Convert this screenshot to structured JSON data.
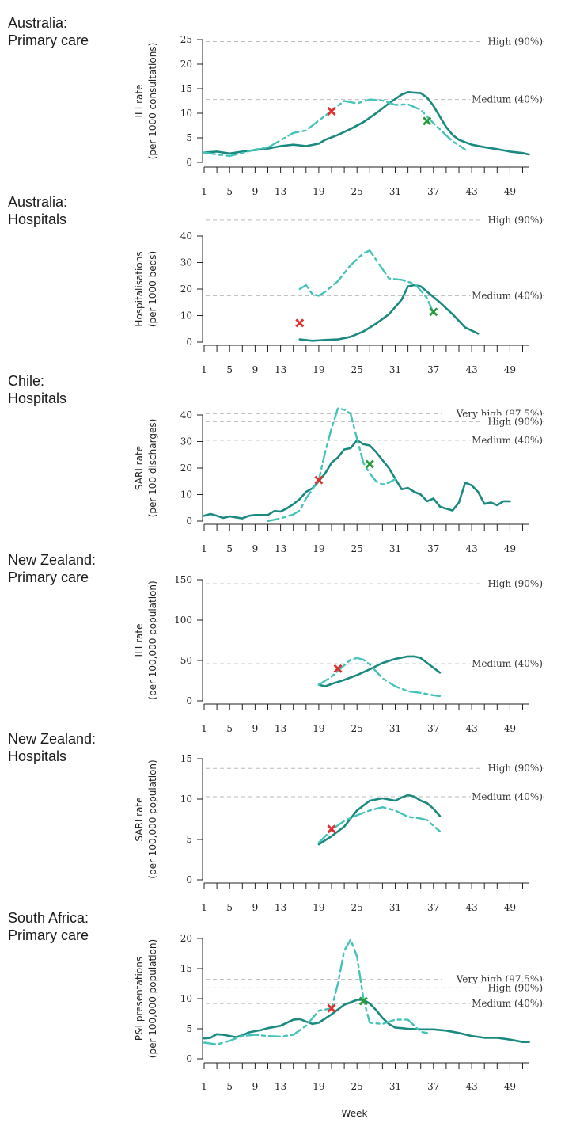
{
  "xlabel": "Week",
  "legend": {
    "current_style": "solid",
    "comparison_style": "dashed"
  },
  "colors": {
    "current": "#1a8a80",
    "comparison": "#44c3b9",
    "threshold": "#bbbbbb",
    "marker_red": "#e03030",
    "marker_green": "#2a9a3a"
  },
  "chart_data": [
    {
      "type": "line",
      "title_lines": [
        "Australia:",
        "Primary care"
      ],
      "ylabel": [
        "ILI rate",
        "(per 1000 consultations)"
      ],
      "ylim": [
        0,
        25
      ],
      "yticks": [
        0,
        5,
        10,
        15,
        20,
        25
      ],
      "xticks": [
        1,
        5,
        9,
        13,
        19,
        25,
        31,
        37,
        43,
        49
      ],
      "thresholds": [
        {
          "label": "High (90%)",
          "value": 24.6
        },
        {
          "label": "Medium (40%)",
          "value": 12.8
        }
      ],
      "series": [
        {
          "style": "solid",
          "x": [
            1,
            3,
            5,
            7,
            9,
            11,
            13,
            15,
            17,
            19,
            20,
            22,
            24,
            26,
            28,
            30,
            32,
            33,
            34,
            35,
            36,
            37,
            38,
            39,
            40,
            41,
            43,
            45,
            47,
            49,
            51,
            52
          ],
          "y": [
            2,
            2.2,
            1.8,
            2.2,
            2.5,
            2.8,
            3.3,
            3.6,
            3.3,
            3.8,
            4.6,
            5.6,
            6.8,
            8.2,
            10,
            12,
            13.8,
            14.3,
            14.2,
            14.1,
            13.2,
            11.5,
            9.3,
            7.2,
            5.6,
            4.6,
            3.6,
            3.1,
            2.7,
            2.2,
            1.9,
            1.6
          ]
        },
        {
          "style": "dashed",
          "x": [
            1,
            3,
            5,
            7,
            9,
            11,
            13,
            15,
            17,
            19,
            21,
            23,
            25,
            27,
            29,
            31,
            33,
            35,
            37,
            39,
            40,
            42
          ],
          "y": [
            2,
            1.6,
            1.3,
            1.9,
            2.6,
            3,
            4.5,
            6,
            6.5,
            8.5,
            10.5,
            12.5,
            12,
            12.8,
            12.6,
            11.7,
            11.8,
            10.7,
            8,
            5.5,
            4.3,
            2.6
          ]
        }
      ],
      "markers": [
        {
          "color": "red",
          "x": 21,
          "y": 10.4
        },
        {
          "color": "green",
          "x": 36,
          "y": 8.4
        }
      ]
    },
    {
      "type": "line",
      "title_lines": [
        "Australia:",
        "Hospitals"
      ],
      "ylabel": [
        "Hospitalisations",
        "(per 1000 beds)"
      ],
      "ylim": [
        0,
        40
      ],
      "yticks": [
        0,
        10,
        20,
        30,
        40
      ],
      "xticks": [
        1,
        5,
        9,
        13,
        19,
        25,
        31,
        37,
        43,
        49
      ],
      "thresholds": [
        {
          "label": "High (90%)",
          "value": 46
        },
        {
          "label": "Medium (40%)",
          "value": 17.5
        }
      ],
      "series": [
        {
          "style": "solid",
          "x": [
            16,
            18,
            20,
            22,
            24,
            26,
            28,
            30,
            32,
            33,
            34,
            35,
            36,
            38,
            40,
            42,
            44
          ],
          "y": [
            1,
            0.5,
            0.8,
            1,
            2,
            4,
            7,
            10.5,
            16,
            21,
            21.5,
            21,
            19,
            15,
            10.5,
            5.5,
            3.2
          ]
        },
        {
          "style": "dashed",
          "x": [
            16,
            17,
            18,
            19,
            20,
            22,
            24,
            26,
            27,
            28,
            30,
            32,
            34,
            35,
            36,
            37
          ],
          "y": [
            20,
            21.5,
            18,
            17.5,
            19,
            23,
            29,
            33.5,
            34.5,
            31,
            24,
            23.5,
            22,
            19.5,
            16.5,
            11
          ]
        }
      ],
      "markers": [
        {
          "color": "red",
          "x": 16,
          "y": 7.2
        },
        {
          "color": "green",
          "x": 37,
          "y": 11.4
        }
      ]
    },
    {
      "type": "line",
      "title_lines": [
        "Chile:",
        "Hospitals"
      ],
      "ylabel": [
        "SARI rate",
        "(per 100 discharges)"
      ],
      "ylim": [
        0,
        40
      ],
      "yticks": [
        0,
        10,
        20,
        30,
        40
      ],
      "xticks": [
        1,
        5,
        9,
        13,
        19,
        25,
        31,
        37,
        43,
        49
      ],
      "thresholds": [
        {
          "label": "Very high (97.5%)",
          "value": 40.5
        },
        {
          "label": "High (90%)",
          "value": 37.5
        },
        {
          "label": "Medium (40%)",
          "value": 30.5
        }
      ],
      "series": [
        {
          "style": "solid",
          "x": [
            1,
            2,
            3,
            4,
            5,
            6,
            7,
            8,
            9,
            10,
            11,
            12,
            13,
            14,
            15,
            16,
            17,
            18,
            19,
            20,
            21,
            22,
            23,
            24,
            25,
            26,
            27,
            28,
            29,
            30,
            31,
            32,
            33,
            34,
            35,
            36,
            37,
            38,
            39,
            40,
            41,
            42,
            43,
            44,
            45,
            46,
            47,
            48,
            49
          ],
          "y": [
            2,
            2.7,
            2,
            1.2,
            1.8,
            1.4,
            1,
            2,
            2.3,
            2.3,
            2.3,
            3.8,
            3.6,
            4.8,
            6.4,
            8.3,
            11,
            12.4,
            15,
            18,
            22,
            24,
            27,
            27.5,
            30.5,
            29,
            28.5,
            26,
            23,
            20,
            16,
            12,
            12.5,
            11,
            10,
            7.5,
            8.5,
            5.5,
            4.7,
            4,
            7,
            14.5,
            13.5,
            11,
            6.5,
            7,
            6,
            7.5,
            7.5
          ]
        },
        {
          "style": "dashed",
          "x": [
            11,
            13,
            15,
            16,
            17,
            18,
            19,
            20,
            21,
            22,
            23,
            24,
            25,
            26,
            27,
            28,
            29,
            30,
            31
          ],
          "y": [
            0,
            1,
            2.5,
            4,
            8.5,
            12,
            15.5,
            26,
            35,
            42.5,
            42,
            40.5,
            31,
            22,
            18,
            15,
            13.8,
            14.5,
            15.8
          ]
        }
      ],
      "markers": [
        {
          "color": "red",
          "x": 19,
          "y": 15.5
        },
        {
          "color": "green",
          "x": 27,
          "y": 21.5
        }
      ]
    },
    {
      "type": "line",
      "title_lines": [
        "New Zealand:",
        "Primary care"
      ],
      "ylabel": [
        "ILI rate",
        "(per 100,000 population)"
      ],
      "ylim": [
        0,
        150
      ],
      "yticks": [
        0,
        50,
        100,
        150
      ],
      "xticks": [
        1,
        5,
        9,
        13,
        19,
        25,
        31,
        37,
        43,
        49
      ],
      "thresholds": [
        {
          "label": "High (90%)",
          "value": 145
        },
        {
          "label": "Medium (40%)",
          "value": 46
        }
      ],
      "series": [
        {
          "style": "solid",
          "x": [
            19,
            20,
            21,
            23,
            25,
            27,
            29,
            31,
            33,
            34,
            35,
            36,
            37,
            38
          ],
          "y": [
            20,
            18,
            21,
            26,
            32,
            39,
            47,
            52,
            55,
            55,
            53,
            47,
            41,
            35
          ]
        },
        {
          "style": "dashed",
          "x": [
            19,
            21,
            23,
            24,
            25,
            26,
            27,
            29,
            31,
            33,
            35,
            37,
            38
          ],
          "y": [
            20,
            30,
            44,
            51,
            53,
            51,
            45,
            28,
            18,
            12,
            10,
            7,
            6
          ]
        }
      ],
      "markers": [
        {
          "color": "red",
          "x": 22,
          "y": 40
        }
      ]
    },
    {
      "type": "line",
      "title_lines": [
        "New Zealand:",
        "Hospitals"
      ],
      "ylabel": [
        "SARI rate",
        "(per 100,000 population)"
      ],
      "ylim": [
        0,
        15
      ],
      "yticks": [
        0,
        5,
        10,
        15
      ],
      "xticks": [
        1,
        5,
        9,
        13,
        19,
        25,
        31,
        37,
        43,
        49
      ],
      "thresholds": [
        {
          "label": "High (90%)",
          "value": 13.8
        },
        {
          "label": "Medium (40%)",
          "value": 10.3
        }
      ],
      "series": [
        {
          "style": "solid",
          "x": [
            19,
            21,
            23,
            25,
            27,
            29,
            31,
            32,
            33,
            34,
            35,
            36,
            37,
            38
          ],
          "y": [
            4.4,
            5.4,
            6.6,
            8.6,
            9.8,
            10.1,
            9.8,
            10.2,
            10.5,
            10.3,
            9.8,
            9.5,
            8.8,
            7.9
          ]
        },
        {
          "style": "dashed",
          "x": [
            19,
            21,
            23,
            25,
            27,
            29,
            31,
            33,
            35,
            36,
            38
          ],
          "y": [
            4.6,
            6.2,
            7.3,
            8,
            8.6,
            9,
            8.6,
            7.8,
            7.6,
            7.4,
            6
          ]
        }
      ],
      "markers": [
        {
          "color": "red",
          "x": 21,
          "y": 6.3
        }
      ]
    },
    {
      "type": "line",
      "title_lines": [
        "South Africa:",
        "Primary care"
      ],
      "ylabel": [
        "P&I presentations",
        "(per 100,000 population)"
      ],
      "ylim": [
        0,
        20
      ],
      "yticks": [
        0,
        5,
        10,
        15,
        20
      ],
      "xticks": [
        1,
        5,
        9,
        13,
        19,
        25,
        31,
        37,
        43,
        49
      ],
      "thresholds": [
        {
          "label": "Very high (97.5%)",
          "value": 13.2
        },
        {
          "label": "High (90%)",
          "value": 11.8
        },
        {
          "label": "Medium (40%)",
          "value": 9.2
        }
      ],
      "series": [
        {
          "style": "solid",
          "x": [
            1,
            2,
            3,
            4,
            5,
            6,
            7,
            8,
            9,
            10,
            11,
            12,
            13,
            14,
            15,
            16,
            17,
            18,
            19,
            20,
            21,
            22,
            23,
            24,
            25,
            26,
            27,
            28,
            29,
            30,
            31,
            32,
            33,
            35,
            37,
            39,
            41,
            43,
            45,
            47,
            49,
            51,
            52
          ],
          "y": [
            3.4,
            3.5,
            4.1,
            4,
            3.8,
            3.6,
            3.9,
            4.4,
            4.6,
            4.8,
            5.1,
            5.3,
            5.5,
            6,
            6.5,
            6.6,
            6.2,
            5.8,
            6,
            6.7,
            7.4,
            8.2,
            9,
            9.4,
            9.8,
            9.8,
            9.2,
            8.1,
            6.8,
            5.8,
            5.2,
            5.1,
            5,
            4.9,
            4.9,
            4.7,
            4.3,
            3.8,
            3.5,
            3.5,
            3.2,
            2.8,
            2.8
          ]
        },
        {
          "style": "dashed",
          "x": [
            1,
            3,
            5,
            7,
            9,
            11,
            13,
            15,
            17,
            19,
            21,
            22,
            23,
            24,
            25,
            26,
            27,
            29,
            31,
            33,
            35,
            36
          ],
          "y": [
            2.7,
            2.4,
            3,
            3.8,
            4,
            3.8,
            3.7,
            4,
            5.5,
            8,
            8.4,
            12.5,
            18,
            19.8,
            17,
            10,
            6,
            5.8,
            6.5,
            6.5,
            4.5,
            4.3
          ]
        }
      ],
      "markers": [
        {
          "color": "red",
          "x": 21,
          "y": 8.4
        },
        {
          "color": "green",
          "x": 26,
          "y": 9.6
        }
      ]
    }
  ]
}
